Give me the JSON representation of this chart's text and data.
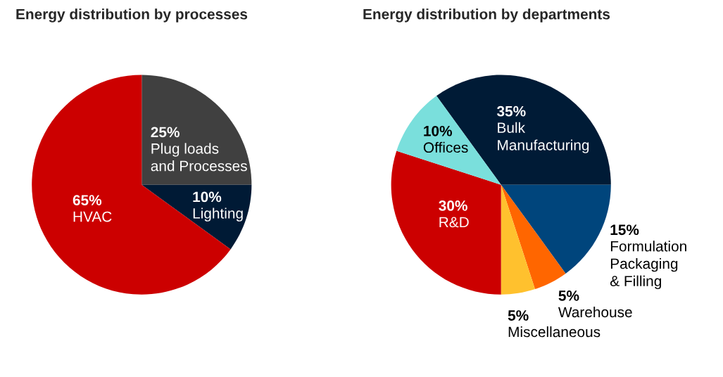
{
  "chart_data": [
    {
      "type": "pie",
      "title": "Energy distribution by processes",
      "categories": [
        "Plug loads\nand Processes",
        "Lighting",
        "HVAC"
      ],
      "values": [
        25,
        10,
        65
      ],
      "value_labels": [
        "25%",
        "10%",
        "65%"
      ],
      "colors": [
        "#404040",
        "#001a35",
        "#cc0000"
      ]
    },
    {
      "type": "pie",
      "title": "Energy distribution by departments",
      "categories": [
        "Bulk\nManufacturing",
        "Formulation\nPackaging\n& Filling",
        "Warehouse",
        "Miscellaneous",
        "R&D",
        "Offices"
      ],
      "values": [
        35,
        15,
        5,
        5,
        30,
        10
      ],
      "value_labels": [
        "35%",
        "15%",
        "5%",
        "5%",
        "30%",
        "10%"
      ],
      "colors": [
        "#001b36",
        "#00457c",
        "#ff6600",
        "#ffc12e",
        "#cc0000",
        "#7adfdc"
      ]
    }
  ]
}
